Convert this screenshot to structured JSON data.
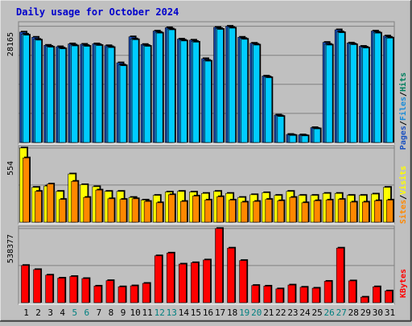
{
  "chart_data": {
    "type": "bar",
    "title": "Daily usage for October 2024",
    "categories": [
      "1",
      "2",
      "3",
      "4",
      "5",
      "6",
      "7",
      "8",
      "9",
      "10",
      "11",
      "12",
      "13",
      "14",
      "15",
      "16",
      "17",
      "18",
      "19",
      "20",
      "21",
      "22",
      "23",
      "24",
      "25",
      "26",
      "27",
      "28",
      "29",
      "30",
      "31"
    ],
    "weekend_days": [
      "5",
      "6",
      "12",
      "13",
      "19",
      "20",
      "26",
      "27"
    ],
    "panels": [
      {
        "name": "hits",
        "ylabel_max": "28165",
        "ymax": 28165,
        "legend": [
          "Pages",
          "/",
          "Files",
          "/",
          "Hits"
        ],
        "series": [
          {
            "name": "Pages",
            "values": [
              26750,
              25500,
              23550,
              23200,
              23900,
              23800,
              23900,
              23450,
              19300,
              25600,
              23750,
              27000,
              27800,
              25050,
              24800,
              20300,
              27900,
              28165,
              25500,
              24050,
              16100,
              6650,
              1950,
              1850,
              3600,
              24250,
              27300,
              24100,
              23300,
              27000,
              25800
            ]
          },
          {
            "name": "Files",
            "values": [
              26250,
              25000,
              23300,
              22900,
              23600,
              23500,
              23700,
              23200,
              18800,
              25100,
              23500,
              26700,
              27500,
              24800,
              24500,
              19900,
              27600,
              27900,
              25200,
              23800,
              15900,
              6450,
              1800,
              1700,
              3400,
              23800,
              26800,
              23900,
              23100,
              26700,
              25500
            ]
          },
          {
            "name": "Hits",
            "values": [
              26000,
              24800,
              23100,
              22700,
              23400,
              23300,
              23500,
              23000,
              18600,
              24900,
              23300,
              26500,
              27300,
              24600,
              24300,
              19700,
              27400,
              27700,
              25000,
              23600,
              15700,
              6300,
              1700,
              1600,
              3300,
              23600,
              26600,
              23700,
              22900,
              26500,
              25300
            ]
          }
        ]
      },
      {
        "name": "visits",
        "ylabel_max": "554",
        "ymax": 554,
        "legend": [
          "Sites",
          "/",
          "Visits"
        ],
        "series": [
          {
            "name": "Visits",
            "values": [
              554,
              260,
              270,
              230,
              360,
              280,
              265,
              230,
              230,
              185,
              165,
              200,
              225,
              230,
              225,
              215,
              230,
              215,
              185,
              205,
              220,
              200,
              230,
              200,
              200,
              215,
              215,
              200,
              200,
              210,
              260
            ]
          },
          {
            "name": "Sites",
            "values": [
              480,
              230,
              285,
              170,
              305,
              185,
              240,
              175,
              170,
              175,
              155,
              145,
              205,
              155,
              195,
              165,
              190,
              165,
              150,
              155,
              170,
              160,
              185,
              145,
              160,
              165,
              170,
              150,
              150,
              160,
              165
            ]
          }
        ]
      },
      {
        "name": "kbytes",
        "ylabel_max": "538377",
        "ymax": 538377,
        "legend": [
          "KBytes"
        ],
        "series": [
          {
            "name": "KBytes",
            "values": [
              270000,
              240000,
              200000,
              178000,
              190000,
              175000,
              120000,
              160000,
              115000,
              122000,
              140000,
              340000,
              360000,
              280000,
              290000,
              310000,
              538377,
              396000,
              306000,
              125000,
              120000,
              100000,
              128000,
              112000,
              105000,
              155000,
              396000,
              158000,
              40000,
              115000,
              85000
            ]
          }
        ]
      }
    ],
    "colors": {
      "pages": "#1a50c0",
      "files": "#1a8cd8",
      "hits": "#00ccff",
      "visits": "#ffff00",
      "sites": "#ff8800",
      "kbytes": "#ff0000",
      "title": "#0000cc",
      "weekend": "#008080",
      "legend_hits": "#00805f"
    }
  }
}
